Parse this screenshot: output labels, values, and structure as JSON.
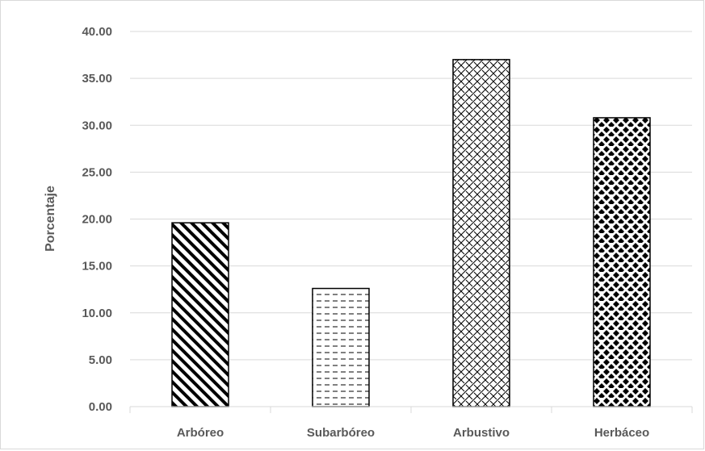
{
  "chart_data": {
    "type": "bar",
    "title": "",
    "xlabel": "",
    "ylabel": "Porcentaje",
    "categories": [
      "Arbóreo",
      "Subarbóreo",
      "Arbustivo",
      "Herbáceo"
    ],
    "values": [
      19.6,
      12.6,
      37.0,
      30.8
    ],
    "patterns": [
      "wide-diagonal-down",
      "dashed-horizontal",
      "diagonal-crosshatch",
      "diamond-dots"
    ],
    "bar_fill_color": "#000000",
    "gridline_color": "#d9d9d9",
    "ylim": [
      0,
      40
    ],
    "yticks": [
      "0.00",
      "5.00",
      "10.00",
      "15.00",
      "20.00",
      "25.00",
      "30.00",
      "35.00",
      "40.00"
    ],
    "grid": true,
    "legend": "none"
  }
}
